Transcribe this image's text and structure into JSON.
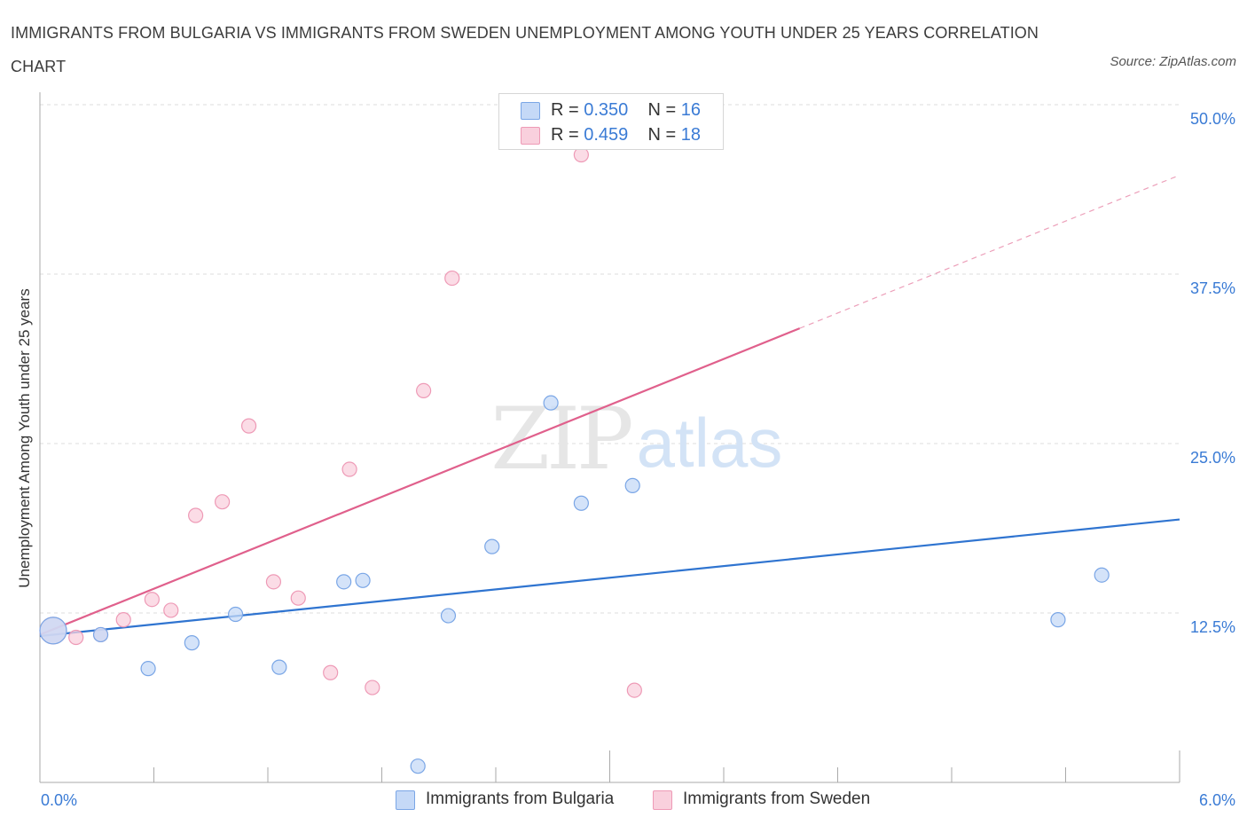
{
  "title": "IMMIGRANTS FROM BULGARIA VS IMMIGRANTS FROM SWEDEN UNEMPLOYMENT AMONG YOUTH UNDER 25 YEARS CORRELATION CHART",
  "source": "Source: ZipAtlas.com",
  "watermark": {
    "zip": "ZIP",
    "atlas": "atlas"
  },
  "legend": {
    "r_label": "R =",
    "n_label": "N =",
    "rows": [
      {
        "r": "0.350",
        "n": "16"
      },
      {
        "r": "0.459",
        "n": "18"
      }
    ]
  },
  "colors": {
    "bulgaria_fill": "#c5d9f7",
    "bulgaria_stroke": "#7aa6e6",
    "bulgaria_line": "#2f74d0",
    "sweden_fill": "#f9d0dd",
    "sweden_stroke": "#ee9ab6",
    "sweden_line": "#e0608c",
    "tick_label": "#3a7bd5",
    "grid": "#dddddd"
  },
  "chart_data": {
    "type": "scatter",
    "xlabel": "",
    "ylabel": "Unemployment Among Youth under 25 years",
    "xlim": [
      0,
      6
    ],
    "ylim": [
      0,
      50
    ],
    "x_tick_labels": [
      "0.0%",
      "6.0%"
    ],
    "y_ticks": [
      12.5,
      25.0,
      37.5,
      50.0
    ],
    "y_tick_labels": [
      "12.5%",
      "25.0%",
      "37.5%",
      "50.0%"
    ],
    "grid": "horizontal dashed",
    "legend_position": "top-center",
    "series": [
      {
        "name": "Immigrants from Bulgaria",
        "points": [
          [
            0.07,
            11.2
          ],
          [
            0.32,
            10.9
          ],
          [
            0.57,
            8.4
          ],
          [
            0.8,
            10.3
          ],
          [
            1.03,
            12.4
          ],
          [
            1.26,
            8.5
          ],
          [
            1.6,
            14.8
          ],
          [
            1.7,
            14.9
          ],
          [
            1.99,
            1.2
          ],
          [
            2.15,
            12.3
          ],
          [
            2.38,
            17.4
          ],
          [
            2.69,
            28.0
          ],
          [
            2.85,
            20.6
          ],
          [
            3.12,
            21.9
          ],
          [
            5.36,
            12.0
          ],
          [
            5.59,
            15.3
          ]
        ],
        "trend": {
          "x": [
            0.0,
            6.0
          ],
          "y": [
            10.8,
            19.4
          ]
        }
      },
      {
        "name": "Immigrants from Sweden",
        "points": [
          [
            0.07,
            11.2
          ],
          [
            0.19,
            10.7
          ],
          [
            0.32,
            10.9
          ],
          [
            0.44,
            12.0
          ],
          [
            0.59,
            13.5
          ],
          [
            0.69,
            12.7
          ],
          [
            0.82,
            19.7
          ],
          [
            0.96,
            20.7
          ],
          [
            1.1,
            26.3
          ],
          [
            1.23,
            14.8
          ],
          [
            1.36,
            13.6
          ],
          [
            1.53,
            8.1
          ],
          [
            1.63,
            23.1
          ],
          [
            1.75,
            7.0
          ],
          [
            2.02,
            28.9
          ],
          [
            2.17,
            37.2
          ],
          [
            2.85,
            46.3
          ],
          [
            3.13,
            6.8
          ]
        ],
        "trend": {
          "x": [
            0.0,
            4.0
          ],
          "y": [
            10.9,
            33.5
          ]
        },
        "trend_extension": {
          "x": [
            4.0,
            6.0
          ],
          "y": [
            33.5,
            44.8
          ]
        }
      }
    ]
  }
}
